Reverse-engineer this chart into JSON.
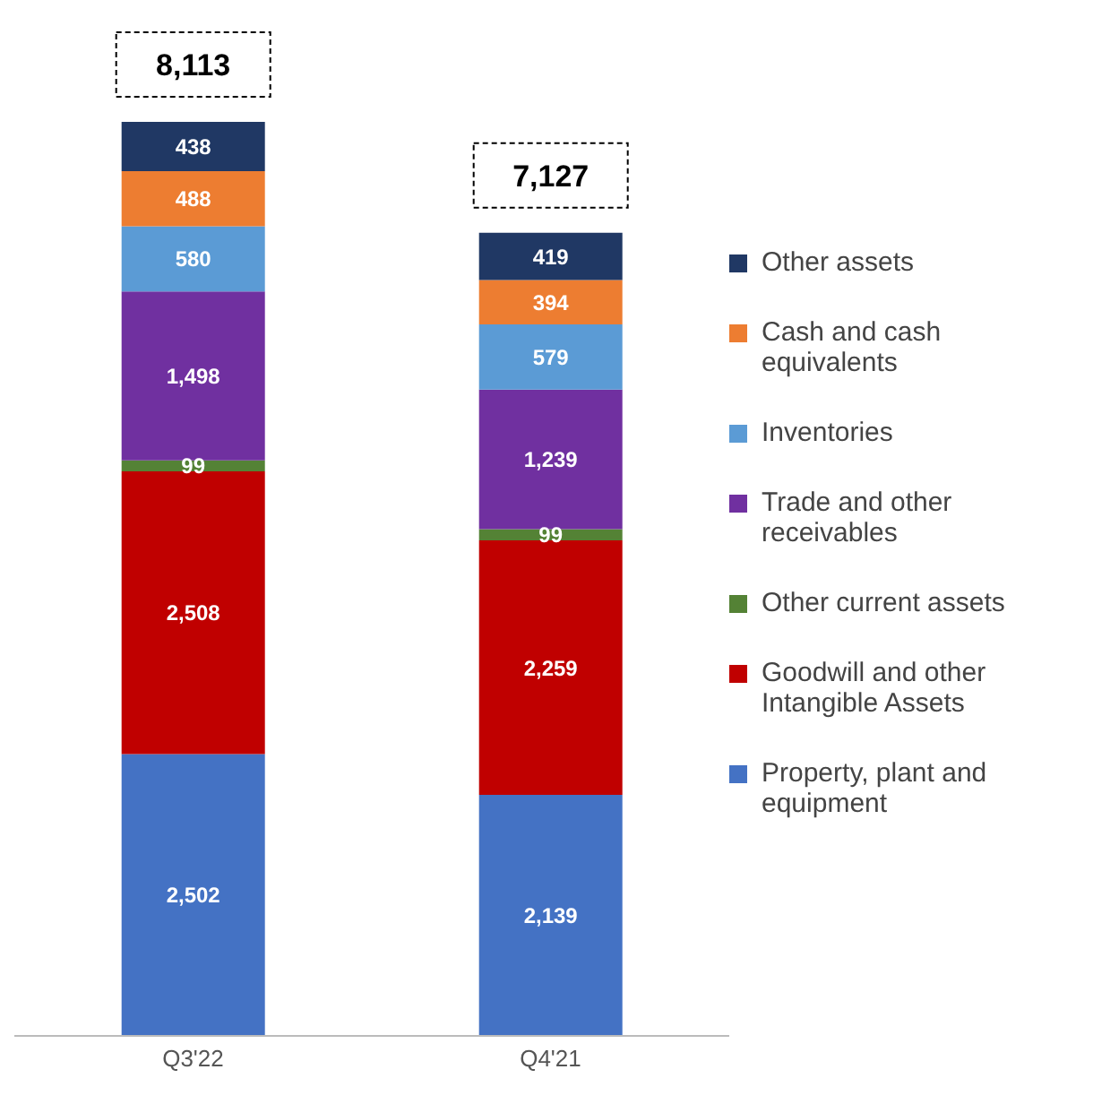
{
  "chart_data": {
    "type": "bar",
    "stacked": true,
    "legend": "right",
    "categories": [
      "Q3'22",
      "Q4'21"
    ],
    "series": [
      {
        "name": "Property, plant and equipment",
        "color": "#4472c4",
        "values": [
          2502,
          2139
        ],
        "value_labels": [
          "2,502",
          "2,139"
        ]
      },
      {
        "name": "Goodwill and other Intangible Assets",
        "color": "#c00000",
        "values": [
          2508,
          2259
        ],
        "value_labels": [
          "2,508",
          "2,259"
        ]
      },
      {
        "name": "Other current assets",
        "color": "#548235",
        "values": [
          99,
          99
        ],
        "value_labels": [
          "99",
          "99"
        ]
      },
      {
        "name": "Trade and other receivables",
        "color": "#7030a0",
        "values": [
          1498,
          1239
        ],
        "value_labels": [
          "1,498",
          "1,239"
        ]
      },
      {
        "name": "Inventories",
        "color": "#5b9bd5",
        "values": [
          580,
          579
        ],
        "value_labels": [
          "580",
          "579"
        ]
      },
      {
        "name": "Cash and cash equivalents",
        "color": "#ed7d31",
        "values": [
          488,
          394
        ],
        "value_labels": [
          "488",
          "394"
        ]
      },
      {
        "name": "Other assets",
        "color": "#203864",
        "values": [
          438,
          419
        ],
        "value_labels": [
          "438",
          "419"
        ]
      }
    ],
    "totals": [
      "8,113",
      "7,127"
    ]
  }
}
